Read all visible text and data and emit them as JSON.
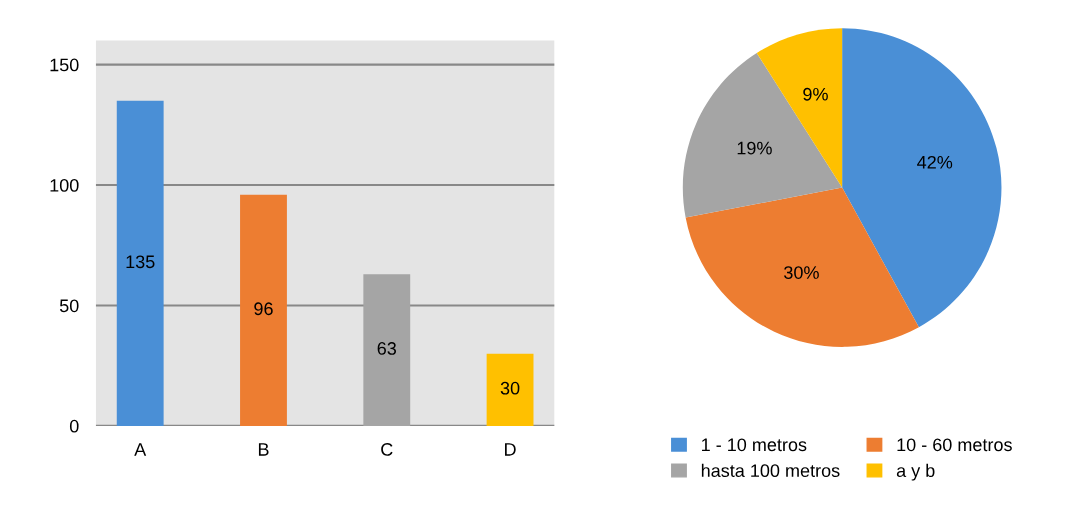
{
  "chart_data": [
    {
      "type": "bar",
      "categories": [
        "A",
        "B",
        "C",
        "D"
      ],
      "values": [
        135,
        96,
        63,
        30
      ],
      "colors": [
        "#4a8fd6",
        "#ed7d31",
        "#a5a5a5",
        "#ffc000"
      ],
      "ylim": [
        0,
        160
      ],
      "yticks": [
        0,
        50,
        100,
        150
      ],
      "grid": "y",
      "data_labels": true
    },
    {
      "type": "pie",
      "categories": [
        "1 - 10 metros",
        "10 - 60 metros",
        "hasta 100 metros",
        "a y b"
      ],
      "values": [
        42,
        30,
        19,
        9
      ],
      "colors": [
        "#4a8fd6",
        "#ed7d31",
        "#a5a5a5",
        "#ffc000"
      ],
      "value_labels": [
        "42%",
        "30%",
        "19%",
        "9%"
      ],
      "legend": "bottom"
    }
  ]
}
